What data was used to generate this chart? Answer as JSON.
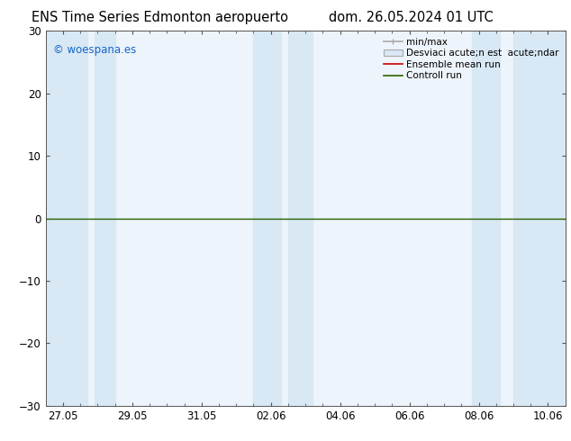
{
  "title_left": "ENS Time Series Edmonton aeropuerto",
  "title_right": "dom. 26.05.2024 01 UTC",
  "ylim": [
    -30,
    30
  ],
  "yticks": [
    -30,
    -20,
    -10,
    0,
    10,
    20,
    30
  ],
  "x_tick_labels": [
    "27.05",
    "29.05",
    "31.05",
    "02.06",
    "04.06",
    "06.06",
    "08.06",
    "10.06"
  ],
  "x_tick_positions": [
    0,
    2,
    4,
    6,
    8,
    10,
    12,
    14
  ],
  "x_min": -0.5,
  "x_max": 14.5,
  "watermark": "© woespana.es",
  "legend_entries": [
    "min/max",
    "Desviaci acute;n est  acute;ndar",
    "Ensemble mean run",
    "Controll run"
  ],
  "blue_band_color": "#d8e8f4",
  "plot_bg_color": "#eef4fb",
  "background_color": "#ffffff",
  "title_fontsize": 10.5,
  "tick_fontsize": 8.5,
  "legend_fontsize": 7.5,
  "watermark_color": "#1166cc",
  "zero_line_color": "#2a6000",
  "border_color": "#555555",
  "band_spans": [
    [
      -0.5,
      0.7
    ],
    [
      0.9,
      1.5
    ],
    [
      5.5,
      6.3
    ],
    [
      6.5,
      7.2
    ],
    [
      11.8,
      12.6
    ],
    [
      13.0,
      14.5
    ]
  ]
}
